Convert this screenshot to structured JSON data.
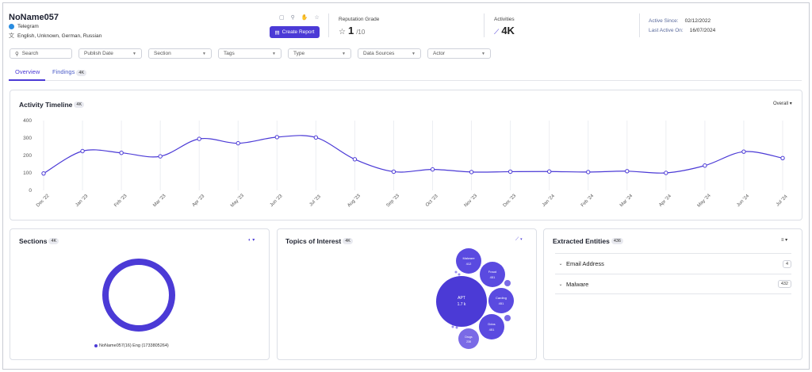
{
  "header": {
    "name": "NoName057",
    "platform": "Telegram",
    "languages": "English, Unknown, German, Russian",
    "create_report_label": "Create Report",
    "reputation_label": "Reputation Grade",
    "reputation_value": "1",
    "reputation_max": "/10",
    "activities_label": "Activities",
    "activities_value": "4K",
    "active_since_label": "Active Since:",
    "active_since_value": "02/12/2022",
    "last_active_label": "Last Active On:",
    "last_active_value": "16/07/2024"
  },
  "filters": {
    "search_placeholder": "Search",
    "items": [
      "Publish Date",
      "Section",
      "Tags",
      "Type",
      "Data Sources",
      "Actor"
    ]
  },
  "tabs": [
    {
      "label": "Overview",
      "active": true
    },
    {
      "label": "Findings",
      "badge": "4K",
      "active": false
    }
  ],
  "timeline": {
    "title": "Activity Timeline",
    "badge": "4K",
    "control": "Overall"
  },
  "chart_data": {
    "type": "line",
    "title": "Activity Timeline",
    "x": [
      "Dec '22",
      "Jan '23",
      "Feb '23",
      "Mar '23",
      "Apr '23",
      "May '23",
      "Jun '23",
      "Jul '23",
      "Aug '23",
      "Sep '23",
      "Oct '23",
      "Nov '23",
      "Dec '23",
      "Jan '24",
      "Feb '24",
      "Mar '24",
      "Apr '24",
      "May '24",
      "Jun '24",
      "Jul '24"
    ],
    "series": [
      {
        "values": [
          97,
          225,
          215,
          195,
          295,
          270,
          305,
          303,
          178,
          107,
          120,
          105,
          107,
          108,
          105,
          110,
          100,
          142,
          222,
          185
        ]
      }
    ],
    "yticks": [
      "400",
      "300",
      "200",
      "100",
      "0"
    ],
    "ylim": [
      0,
      400
    ],
    "grid": true,
    "color": "#4b3ad6"
  },
  "sections": {
    "title": "Sections",
    "badge": "4K",
    "legend": "NoName057(16) Eng (1733805264)",
    "color": "#4b3ad6"
  },
  "topics": {
    "title": "Topics of Interest",
    "badge": "4K",
    "bubbles": [
      {
        "label": "APT",
        "value": "1.7 k"
      },
      {
        "label": "Malware",
        "value": "412"
      },
      {
        "label": "Fraud",
        "value": "451"
      },
      {
        "label": "Carding",
        "value": "451"
      },
      {
        "label": "Ddos",
        "value": "451"
      },
      {
        "label": "Drugs",
        "value": "238"
      }
    ]
  },
  "entities": {
    "title": "Extracted Entities",
    "badge": "436",
    "rows": [
      {
        "label": "Email Address",
        "count": "4"
      },
      {
        "label": "Malware",
        "count": "432"
      }
    ]
  }
}
